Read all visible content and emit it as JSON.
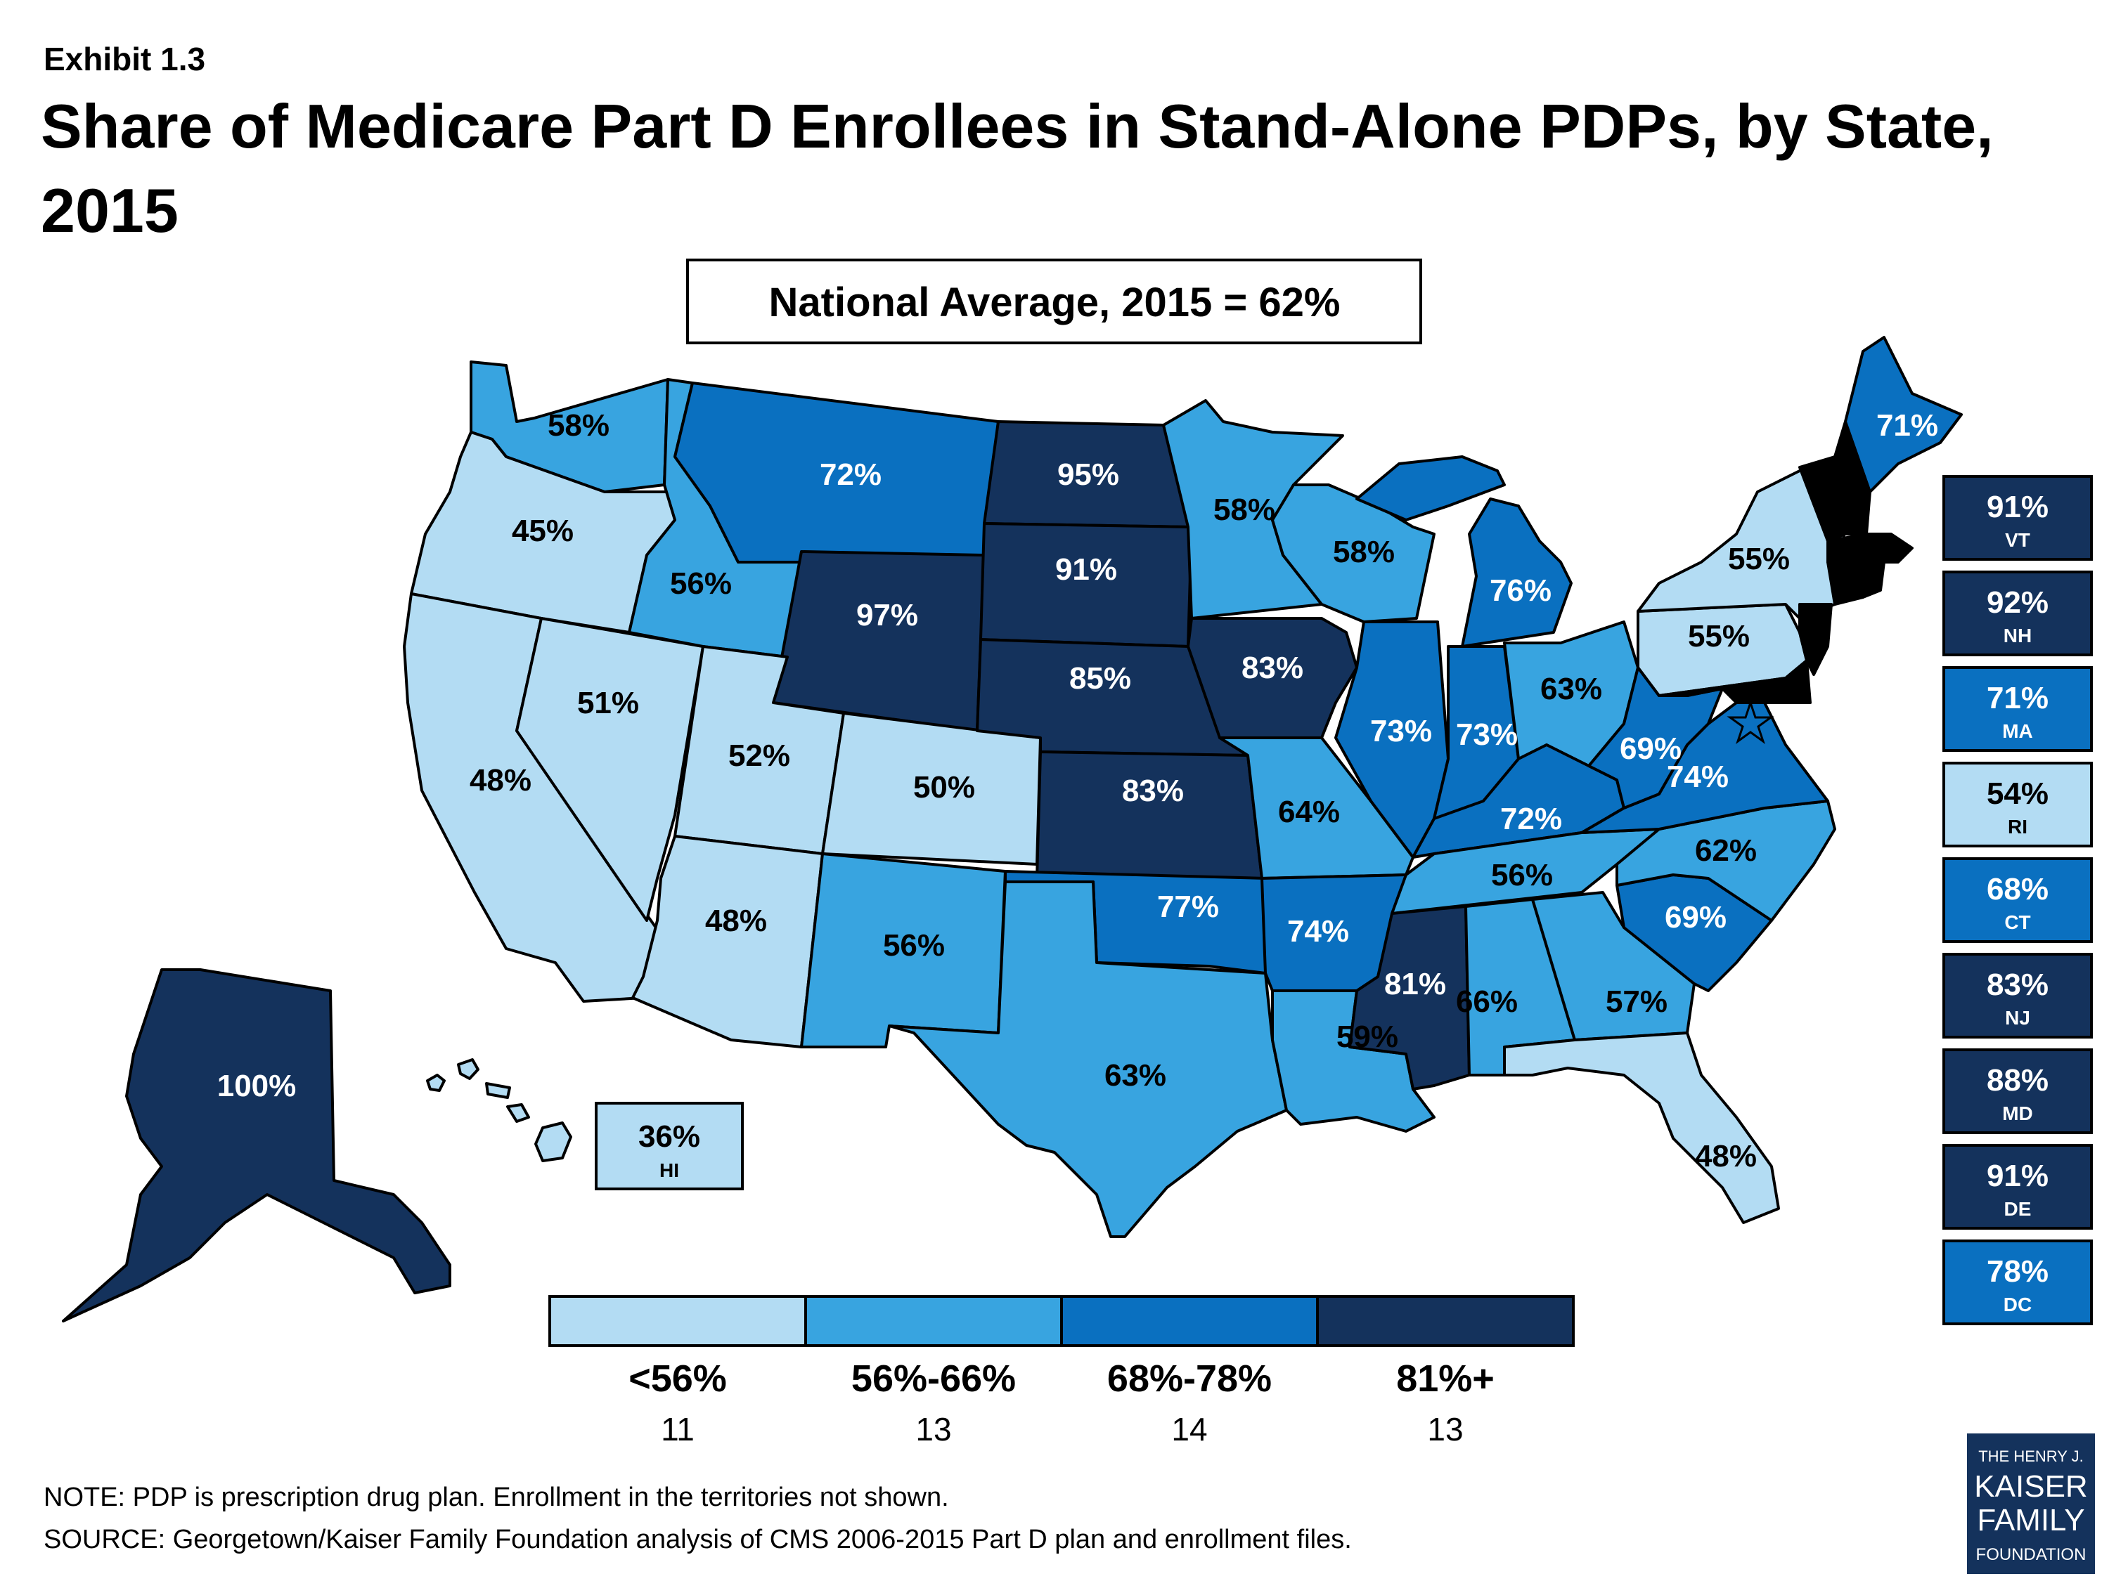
{
  "exhibit": "Exhibit 1.3",
  "title_line1": "Share of Medicare Part D Enrollees in Stand-Alone PDPs, by State,",
  "title_line2": "2015",
  "national_average": "National Average, 2015 = 62%",
  "colors": {
    "light": "#b3dcf3",
    "medium": "#38a4e0",
    "dark": "#0a70c0",
    "darkest": "#14325c",
    "label_dark_text": "#000000",
    "label_light_text": "#ffffff"
  },
  "states": {
    "WA": "58%",
    "OR": "45%",
    "CA": "48%",
    "NV": "51%",
    "ID": "56%",
    "MT": "72%",
    "WY": "97%",
    "UT": "52%",
    "AZ": "48%",
    "CO": "50%",
    "NM": "56%",
    "ND": "95%",
    "SD": "91%",
    "NE": "85%",
    "KS": "83%",
    "OK": "77%",
    "TX": "63%",
    "MN": "58%",
    "IA": "83%",
    "MO": "64%",
    "AR": "74%",
    "LA": "59%",
    "WI": "58%",
    "IL": "73%",
    "MI": "76%",
    "IN": "73%",
    "OH": "63%",
    "KY": "72%",
    "TN": "56%",
    "MS": "81%",
    "AL": "66%",
    "GA": "57%",
    "FL": "48%",
    "SC": "69%",
    "NC": "62%",
    "VA": "74%",
    "WV": "69%",
    "PA": "55%",
    "NY": "55%",
    "ME": "71%",
    "AK": "100%"
  },
  "hawaii_box": {
    "value": "36%",
    "abbr": "HI"
  },
  "side_boxes": [
    {
      "value": "91%",
      "abbr": "VT"
    },
    {
      "value": "92%",
      "abbr": "NH"
    },
    {
      "value": "71%",
      "abbr": "MA"
    },
    {
      "value": "54%",
      "abbr": "RI"
    },
    {
      "value": "68%",
      "abbr": "CT"
    },
    {
      "value": "83%",
      "abbr": "NJ"
    },
    {
      "value": "88%",
      "abbr": "MD"
    },
    {
      "value": "91%",
      "abbr": "DE"
    },
    {
      "value": "78%",
      "abbr": "DC"
    }
  ],
  "legend": [
    {
      "range": "<56%",
      "count": "11"
    },
    {
      "range": "56%-66%",
      "count": "13"
    },
    {
      "range": "68%-78%",
      "count": "14"
    },
    {
      "range": "81%+",
      "count": "13"
    }
  ],
  "note": "NOTE: PDP is prescription drug plan. Enrollment in the territories not shown.",
  "source": "SOURCE: Georgetown/Kaiser Family Foundation analysis of CMS 2006-2015 Part D plan and enrollment files.",
  "logo": {
    "line1": "THE HENRY J.",
    "line2": "KAISER",
    "line3": "FAMILY",
    "line4": "FOUNDATION"
  }
}
